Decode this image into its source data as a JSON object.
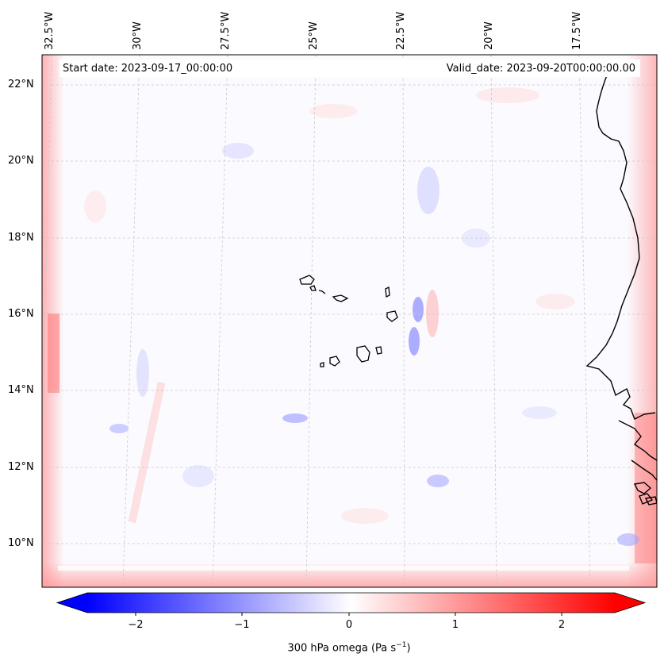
{
  "map": {
    "start_label": "Start date: 2023-09-17_00:00:00",
    "valid_label": "Valid_date: 2023-09-20T00:00:00.00",
    "lon_labels": [
      "32.5°W",
      "30°W",
      "27.5°W",
      "25°W",
      "22.5°W",
      "20°W",
      "17.5°W"
    ],
    "lat_labels": [
      "22°N",
      "20°N",
      "18°N",
      "16°N",
      "14°N",
      "12°N",
      "10°N"
    ],
    "gridlines": "dashed",
    "coastline_color": "#000000",
    "field_colormap": "bwr"
  },
  "colorbar": {
    "label_prefix": "300 hPa omega (Pa s",
    "label_exp": "−1",
    "label_suffix": ")",
    "ticks": [
      "−2",
      "−1",
      "0",
      "1",
      "2"
    ],
    "range": [
      -2.75,
      2.75
    ],
    "extend": "both",
    "colors": {
      "min": "#0000ff",
      "mid": "#ffffff",
      "max": "#ff0000"
    }
  }
}
